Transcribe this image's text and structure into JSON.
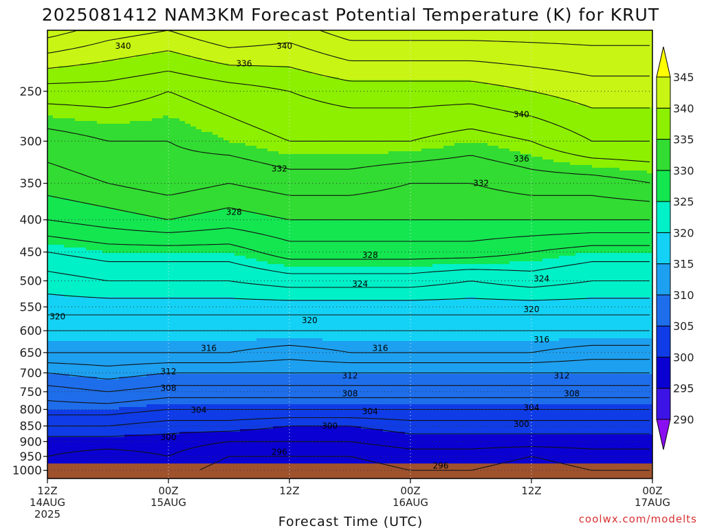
{
  "chart_data": {
    "type": "heatmap",
    "title": "2025081412 NAM3KM Forecast Potential Temperature (K) for KRUT",
    "xlabel": "Forecast Time (UTC)",
    "ylabel": "",
    "credit": "coolwx.com/modelts",
    "x_ticks": [
      {
        "hours": 0,
        "line1": "12Z",
        "line2": "14AUG",
        "line3": "2025"
      },
      {
        "hours": 12,
        "line1": "00Z",
        "line2": "15AUG",
        "line3": ""
      },
      {
        "hours": 24,
        "line1": "12Z",
        "line2": "",
        "line3": ""
      },
      {
        "hours": 36,
        "line1": "00Z",
        "line2": "16AUG",
        "line3": ""
      },
      {
        "hours": 48,
        "line1": "12Z",
        "line2": "",
        "line3": ""
      },
      {
        "hours": 60,
        "line1": "00Z",
        "line2": "17AUG",
        "line3": ""
      }
    ],
    "xlim_hours": [
      0,
      60
    ],
    "y_ticks": [
      250,
      300,
      350,
      400,
      450,
      500,
      550,
      600,
      650,
      700,
      750,
      800,
      850,
      900,
      950,
      1000
    ],
    "ylim_pressure": [
      200,
      1030
    ],
    "y_scale": "log-pressure (reversed)",
    "grid": true,
    "colorbar": {
      "levels": [
        290,
        295,
        300,
        305,
        310,
        315,
        320,
        325,
        330,
        335,
        340,
        345
      ],
      "labels": [
        "290",
        "295",
        "300",
        "305",
        "310",
        "315",
        "320",
        "325",
        "330",
        "335",
        "340",
        "345"
      ],
      "colors": [
        "#8a0ff0",
        "#3c14e6",
        "#0a00d2",
        "#0f3ce6",
        "#1e6eeb",
        "#1ea0f0",
        "#14d2f5",
        "#00f0c8",
        "#14e650",
        "#32dc32",
        "#8cf000",
        "#c8f514",
        "#ffff00"
      ]
    },
    "ground_color": "#a0522d",
    "ground_pressure": 975,
    "field_profile_by_time": [
      {
        "hours": 0,
        "levels": {
          "1000": 298,
          "950": 298,
          "900": 299,
          "850": 302,
          "800": 305,
          "750": 307,
          "700": 310,
          "650": 314,
          "600": 316,
          "550": 319,
          "500": 321,
          "450": 324,
          "400": 328,
          "350": 331,
          "300": 333,
          "250": 337,
          "200": 345
        }
      },
      {
        "hours": 6,
        "levels": {
          "1000": 296,
          "950": 297,
          "900": 299,
          "850": 302,
          "800": 305,
          "750": 308,
          "700": 311,
          "650": 314,
          "600": 316,
          "550": 319,
          "500": 322,
          "450": 325,
          "400": 329,
          "350": 332,
          "300": 334,
          "250": 337,
          "200": 343
        }
      },
      {
        "hours": 12,
        "levels": {
          "1000": 297,
          "950": 298,
          "900": 299,
          "850": 301,
          "800": 304,
          "750": 307,
          "700": 310,
          "650": 314,
          "600": 316,
          "550": 319,
          "500": 322,
          "450": 325,
          "400": 330,
          "350": 333,
          "300": 334,
          "250": 336,
          "200": 342
        }
      },
      {
        "hours": 18,
        "levels": {
          "1000": 295,
          "950": 296,
          "900": 298,
          "850": 301,
          "800": 304,
          "750": 307,
          "700": 310,
          "650": 314,
          "600": 316,
          "550": 319,
          "500": 322,
          "450": 325,
          "400": 329,
          "350": 332,
          "300": 335,
          "250": 337,
          "200": 344
        }
      },
      {
        "hours": 24,
        "levels": {
          "1000": 295,
          "950": 296,
          "900": 298,
          "850": 300,
          "800": 304,
          "750": 307,
          "700": 310,
          "650": 313,
          "600": 316,
          "550": 319,
          "500": 323,
          "450": 327,
          "400": 330,
          "350": 333,
          "300": 336,
          "250": 338,
          "200": 343
        }
      },
      {
        "hours": 30,
        "levels": {
          "1000": 295,
          "950": 296,
          "900": 298,
          "850": 300,
          "800": 304,
          "750": 307,
          "700": 310,
          "650": 314,
          "600": 316,
          "550": 319,
          "500": 323,
          "450": 327,
          "400": 330,
          "350": 333,
          "300": 336,
          "250": 339,
          "200": 345
        }
      },
      {
        "hours": 36,
        "levels": {
          "1000": 296,
          "950": 297,
          "900": 299,
          "850": 301,
          "800": 304,
          "750": 307,
          "700": 310,
          "650": 314,
          "600": 316,
          "550": 319,
          "500": 323,
          "450": 327,
          "400": 330,
          "350": 332,
          "300": 336,
          "250": 339,
          "200": 345
        }
      },
      {
        "hours": 42,
        "levels": {
          "1000": 296,
          "950": 297,
          "900": 299,
          "850": 301,
          "800": 304,
          "750": 307,
          "700": 310,
          "650": 314,
          "600": 316,
          "550": 319,
          "500": 322,
          "450": 327,
          "400": 330,
          "350": 332,
          "300": 335,
          "250": 339,
          "200": 345
        }
      },
      {
        "hours": 48,
        "levels": {
          "1000": 295,
          "950": 296,
          "900": 299,
          "850": 301,
          "800": 304,
          "750": 307,
          "700": 310,
          "650": 314,
          "600": 316,
          "550": 319,
          "500": 323,
          "450": 326,
          "400": 330,
          "350": 333,
          "300": 336,
          "250": 340,
          "200": 345
        }
      },
      {
        "hours": 54,
        "levels": {
          "1000": 296,
          "950": 297,
          "900": 299,
          "850": 301,
          "800": 304,
          "750": 307,
          "700": 310,
          "650": 313,
          "600": 316,
          "550": 319,
          "500": 322,
          "450": 325,
          "400": 330,
          "350": 333,
          "300": 338,
          "250": 341,
          "200": 345
        }
      },
      {
        "hours": 60,
        "levels": {
          "1000": 296,
          "950": 297,
          "900": 299,
          "850": 301,
          "800": 304,
          "750": 307,
          "700": 310,
          "650": 313,
          "600": 316,
          "550": 319,
          "500": 322,
          "450": 325,
          "400": 330,
          "350": 334,
          "300": 338,
          "250": 341,
          "200": 345
        }
      }
    ],
    "contour_interval": 2,
    "contour_labels": [
      {
        "value": "340",
        "hours": 7.5,
        "pressure": 212
      },
      {
        "value": "340",
        "hours": 23.5,
        "pressure": 212
      },
      {
        "value": "336",
        "hours": 19.5,
        "pressure": 226
      },
      {
        "value": "340",
        "hours": 47,
        "pressure": 272
      },
      {
        "value": "336",
        "hours": 47,
        "pressure": 320
      },
      {
        "value": "332",
        "hours": 23,
        "pressure": 332
      },
      {
        "value": "332",
        "hours": 43,
        "pressure": 350
      },
      {
        "value": "328",
        "hours": 18.5,
        "pressure": 389
      },
      {
        "value": "328",
        "hours": 32,
        "pressure": 455
      },
      {
        "value": "324",
        "hours": 31,
        "pressure": 506
      },
      {
        "value": "324",
        "hours": 49,
        "pressure": 496
      },
      {
        "value": "320",
        "hours": 1,
        "pressure": 570
      },
      {
        "value": "320",
        "hours": 26,
        "pressure": 578
      },
      {
        "value": "320",
        "hours": 48,
        "pressure": 555
      },
      {
        "value": "316",
        "hours": 16,
        "pressure": 640
      },
      {
        "value": "316",
        "hours": 33,
        "pressure": 640
      },
      {
        "value": "316",
        "hours": 49,
        "pressure": 620
      },
      {
        "value": "312",
        "hours": 12,
        "pressure": 697
      },
      {
        "value": "312",
        "hours": 30,
        "pressure": 707
      },
      {
        "value": "312",
        "hours": 51,
        "pressure": 707
      },
      {
        "value": "308",
        "hours": 12,
        "pressure": 740
      },
      {
        "value": "308",
        "hours": 30,
        "pressure": 755
      },
      {
        "value": "308",
        "hours": 52,
        "pressure": 755
      },
      {
        "value": "304",
        "hours": 15,
        "pressure": 802
      },
      {
        "value": "304",
        "hours": 32,
        "pressure": 806
      },
      {
        "value": "304",
        "hours": 48,
        "pressure": 795
      },
      {
        "value": "300",
        "hours": 12,
        "pressure": 886
      },
      {
        "value": "300",
        "hours": 28,
        "pressure": 850
      },
      {
        "value": "300",
        "hours": 47,
        "pressure": 845
      },
      {
        "value": "296",
        "hours": 23,
        "pressure": 935
      },
      {
        "value": "296",
        "hours": 39,
        "pressure": 983
      }
    ]
  }
}
